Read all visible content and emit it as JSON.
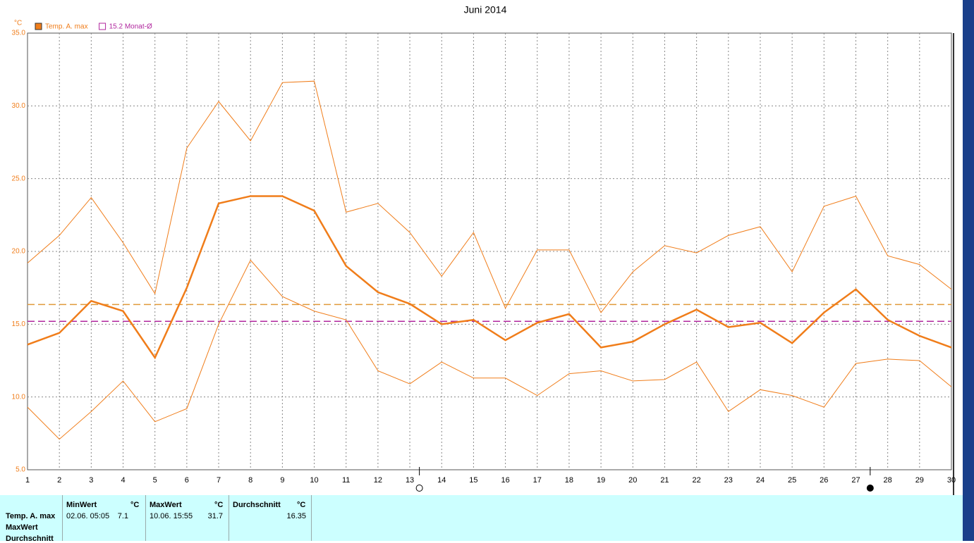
{
  "chart_data": {
    "type": "line",
    "title": "Juni 2014",
    "unit": "°C",
    "x": [
      1,
      2,
      3,
      4,
      5,
      6,
      7,
      8,
      9,
      10,
      11,
      12,
      13,
      14,
      15,
      16,
      17,
      18,
      19,
      20,
      21,
      22,
      23,
      24,
      25,
      26,
      27,
      28,
      29,
      30
    ],
    "xlim": [
      1,
      30
    ],
    "xticks": [
      1,
      2,
      3,
      4,
      5,
      6,
      7,
      8,
      9,
      10,
      11,
      12,
      13,
      14,
      15,
      16,
      17,
      18,
      19,
      20,
      21,
      22,
      23,
      24,
      25,
      26,
      27,
      28,
      29,
      30
    ],
    "ylim": [
      5,
      35
    ],
    "yticks": [
      {
        "value": 5,
        "label": "5.0"
      },
      {
        "value": 10,
        "label": "10.0"
      },
      {
        "value": 15,
        "label": "15.0"
      },
      {
        "value": 20,
        "label": "20.0"
      },
      {
        "value": 25,
        "label": "25.0"
      },
      {
        "value": 30,
        "label": "30.0"
      },
      {
        "value": 35,
        "label": "35.0"
      }
    ],
    "grid": true,
    "series": [
      {
        "name": "Temp. A. max",
        "color": "#f07d1a",
        "width": 2.5,
        "values": [
          13.6,
          14.4,
          16.6,
          15.9,
          12.7,
          17.5,
          23.3,
          23.8,
          23.8,
          22.8,
          19.0,
          17.2,
          16.4,
          15.0,
          15.3,
          13.9,
          15.1,
          15.7,
          13.4,
          13.8,
          15.0,
          16.0,
          14.8,
          15.1,
          13.7,
          15.8,
          17.4,
          15.3,
          14.2,
          13.4
        ]
      },
      {
        "color": "#f07d1a",
        "width": 1,
        "values": [
          19.2,
          21.1,
          23.7,
          20.6,
          17.1,
          27.1,
          30.3,
          27.6,
          31.6,
          31.7,
          22.7,
          23.3,
          21.3,
          18.3,
          21.3,
          16.1,
          20.1,
          20.1,
          15.8,
          18.6,
          20.4,
          19.9,
          21.1,
          21.7,
          18.6,
          23.1,
          23.8,
          19.7,
          19.1,
          17.4
        ]
      },
      {
        "color": "#f07d1a",
        "width": 1,
        "values": [
          9.3,
          7.1,
          9.0,
          11.1,
          8.3,
          9.2,
          15.0,
          19.4,
          16.9,
          15.9,
          15.3,
          11.8,
          10.9,
          12.4,
          11.3,
          11.3,
          10.1,
          11.6,
          11.8,
          11.1,
          11.2,
          12.4,
          9.0,
          10.5,
          10.1,
          9.3,
          12.3,
          12.6,
          12.5,
          10.7
        ]
      }
    ],
    "reference_lines": [
      {
        "value": 16.35,
        "color": "#e09a3a"
      },
      {
        "value": 15.2,
        "label": "15.2 Monat-Ø",
        "color": "#b0269e"
      }
    ],
    "full_moon_x": 13.3,
    "new_moon_x": 27.45
  },
  "table": {
    "headers": [
      [
        "MinWert",
        "°C"
      ],
      [
        "MaxWert",
        "°C"
      ],
      [
        "Durchschnitt",
        "°C"
      ]
    ],
    "row_labels": [
      "Temp. A. max",
      "MaxWert",
      "Durchschnitt"
    ],
    "row": [
      "02.06.  05:05",
      "7.1",
      "10.06.  15:55",
      "31.7",
      "16.35"
    ]
  }
}
